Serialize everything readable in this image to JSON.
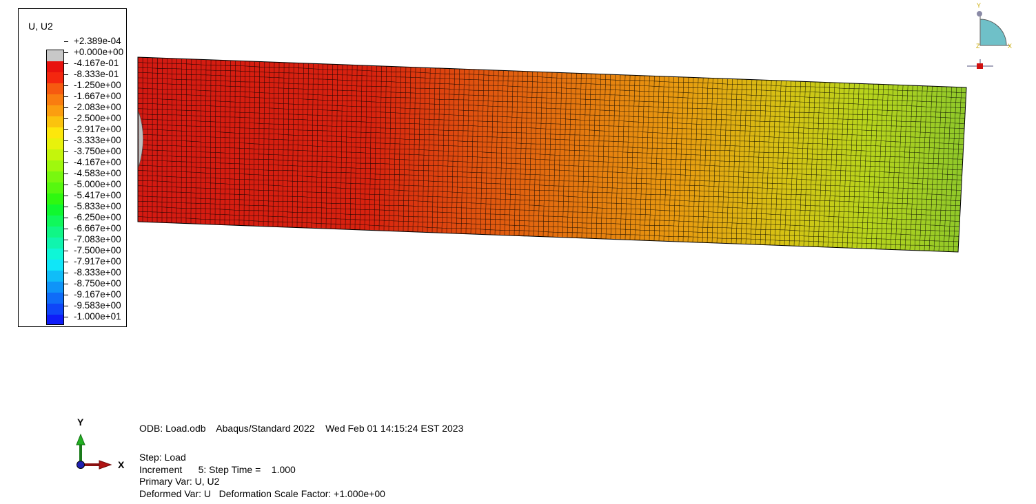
{
  "legend": {
    "title": "U, U2",
    "swatch_colors": [
      "#c8c8c8",
      "#e8120e",
      "#f4270f",
      "#f65a10",
      "#f97d10",
      "#fb9e10",
      "#fbc30e",
      "#fde70c",
      "#e8f20c",
      "#c4f50c",
      "#9ff80d",
      "#78f80f",
      "#56f80f",
      "#2ff810",
      "#10f82f",
      "#10f85b",
      "#10f686",
      "#10f5ae",
      "#0ff6d7",
      "#10e6f8",
      "#10bdf8",
      "#0f94f8",
      "#0f6cf8",
      "#0f46f8",
      "#0f1cf8"
    ],
    "labels": [
      "+2.389e-04",
      "+0.000e+00",
      "-4.167e-01",
      "-8.333e-01",
      "-1.250e+00",
      "-1.667e+00",
      "-2.083e+00",
      "-2.500e+00",
      "-2.917e+00",
      "-3.333e+00",
      "-3.750e+00",
      "-4.167e+00",
      "-4.583e+00",
      "-5.000e+00",
      "-5.417e+00",
      "-5.833e+00",
      "-6.250e+00",
      "-6.667e+00",
      "-7.083e+00",
      "-7.500e+00",
      "-7.917e+00",
      "-8.333e+00",
      "-8.750e+00",
      "-9.167e+00",
      "-9.583e+00",
      "-1.000e+01"
    ]
  },
  "model": {
    "contour_stops": [
      {
        "pos": 0.0,
        "color": "#d41a12"
      },
      {
        "pos": 0.28,
        "color": "#d8220f"
      },
      {
        "pos": 0.4,
        "color": "#e0500f"
      },
      {
        "pos": 0.52,
        "color": "#e4740f"
      },
      {
        "pos": 0.65,
        "color": "#e89a10"
      },
      {
        "pos": 0.78,
        "color": "#d6c214"
      },
      {
        "pos": 0.88,
        "color": "#b8d41c"
      },
      {
        "pos": 1.0,
        "color": "#8ec82a"
      }
    ],
    "fixed_region_color": "#c0c0c0"
  },
  "triad_small": {
    "y": "Y",
    "x": "X",
    "z": "Z"
  },
  "triad_main": {
    "y": "Y",
    "x": "X"
  },
  "info": {
    "odb": "ODB: Load.odb    Abaqus/Standard 2022    Wed Feb 01 14:15:24 EST 2023",
    "step": "Step: Load",
    "increment": "Increment      5: Step Time =    1.000",
    "primary_var": "Primary Var: U, U2",
    "deformed_var": "Deformed Var: U   Deformation Scale Factor: +1.000e+00"
  }
}
